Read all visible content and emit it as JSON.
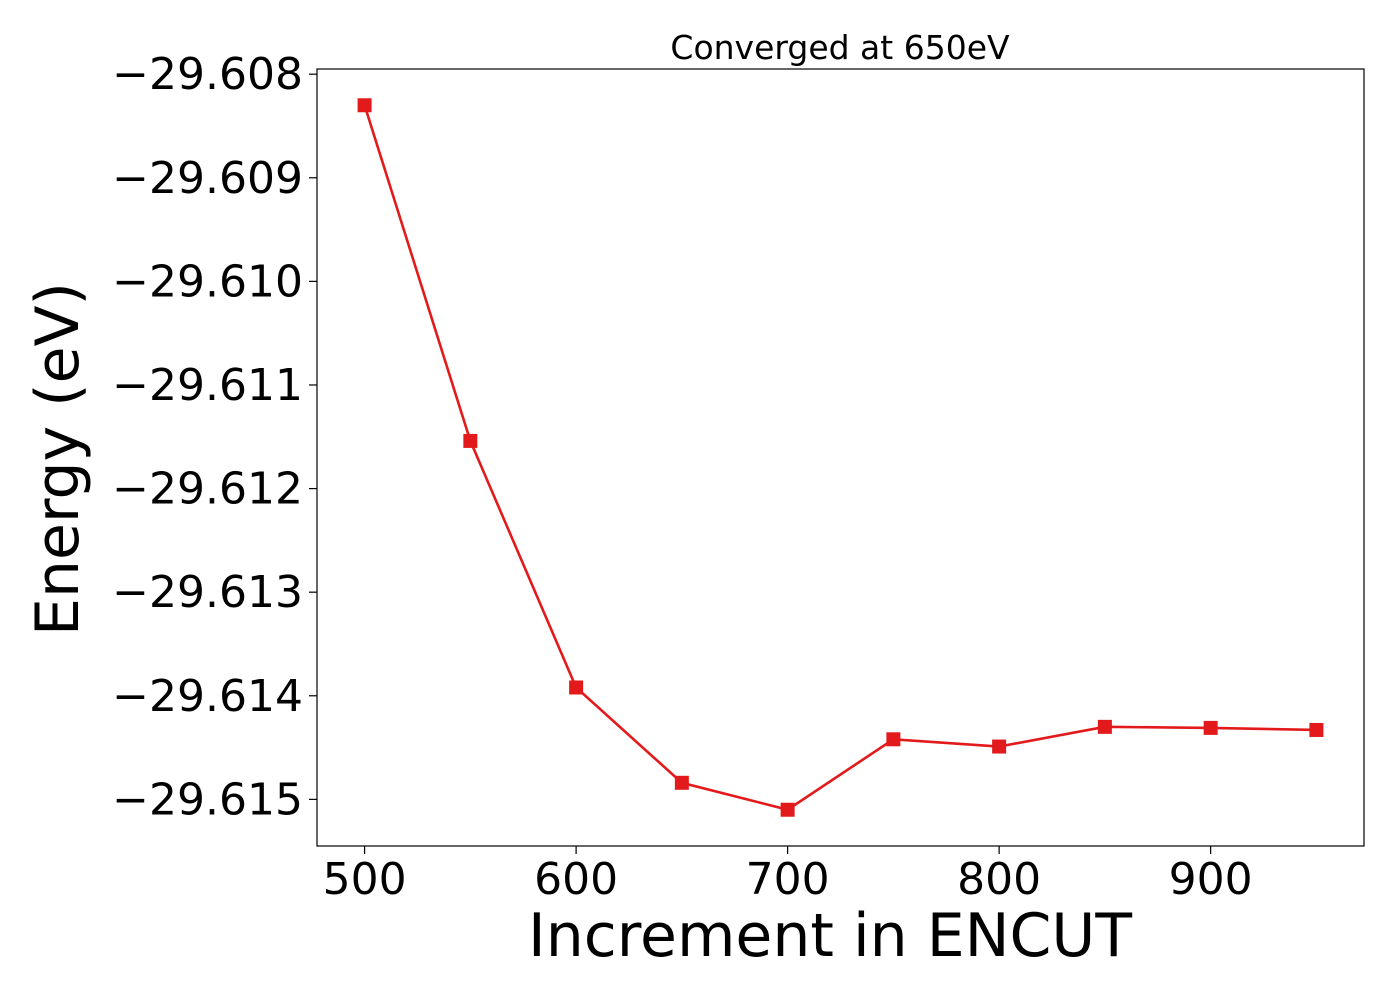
{
  "chart_data": {
    "type": "line",
    "title": "Converged at 650eV",
    "xlabel": "Increment in ENCUT",
    "ylabel": "Energy (eV)",
    "x": [
      500,
      550,
      600,
      650,
      700,
      750,
      800,
      850,
      900,
      950
    ],
    "series": [
      {
        "values": [
          -29.6083,
          -29.61154,
          -29.61392,
          -29.61484,
          -29.6151,
          -29.61442,
          -29.61449,
          -29.6143,
          -29.61431,
          -29.61433
        ],
        "color": "#e31a1c",
        "marker": "square"
      }
    ],
    "xlim": [
      477.5,
      972.5
    ],
    "ylim": [
      -29.61545,
      -29.60795
    ],
    "xticks": [
      500,
      600,
      700,
      800,
      900
    ],
    "xtick_labels": [
      "500",
      "600",
      "700",
      "800",
      "900"
    ],
    "yticks": [
      -29.608,
      -29.609,
      -29.61,
      -29.611,
      -29.612,
      -29.613,
      -29.614,
      -29.615
    ],
    "ytick_labels": [
      "−29.608",
      "−29.609",
      "−29.610",
      "−29.611",
      "−29.612",
      "−29.613",
      "−29.614",
      "−29.615"
    ],
    "grid": false
  }
}
